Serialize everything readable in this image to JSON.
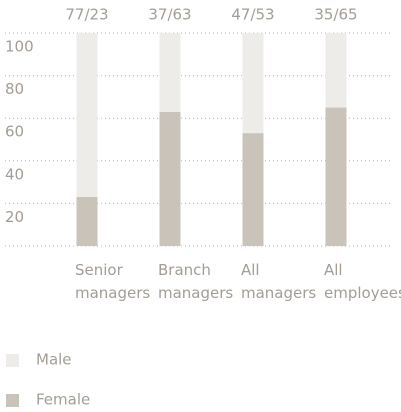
{
  "chart_data": {
    "type": "stacked_bar",
    "categories": [
      "Senior managers",
      "Branch managers",
      "All managers",
      "All employees"
    ],
    "annotations": [
      "77/23",
      "37/63",
      "47/53",
      "35/65"
    ],
    "series": [
      {
        "name": "Female",
        "color": "#c9c3b9",
        "values": [
          23,
          63,
          53,
          65
        ]
      },
      {
        "name": "Male",
        "color": "#edece8",
        "values": [
          77,
          37,
          47,
          35
        ]
      }
    ],
    "ylim": [
      0,
      100
    ],
    "yticks": [
      20,
      40,
      60,
      80,
      100
    ],
    "grid": true
  }
}
